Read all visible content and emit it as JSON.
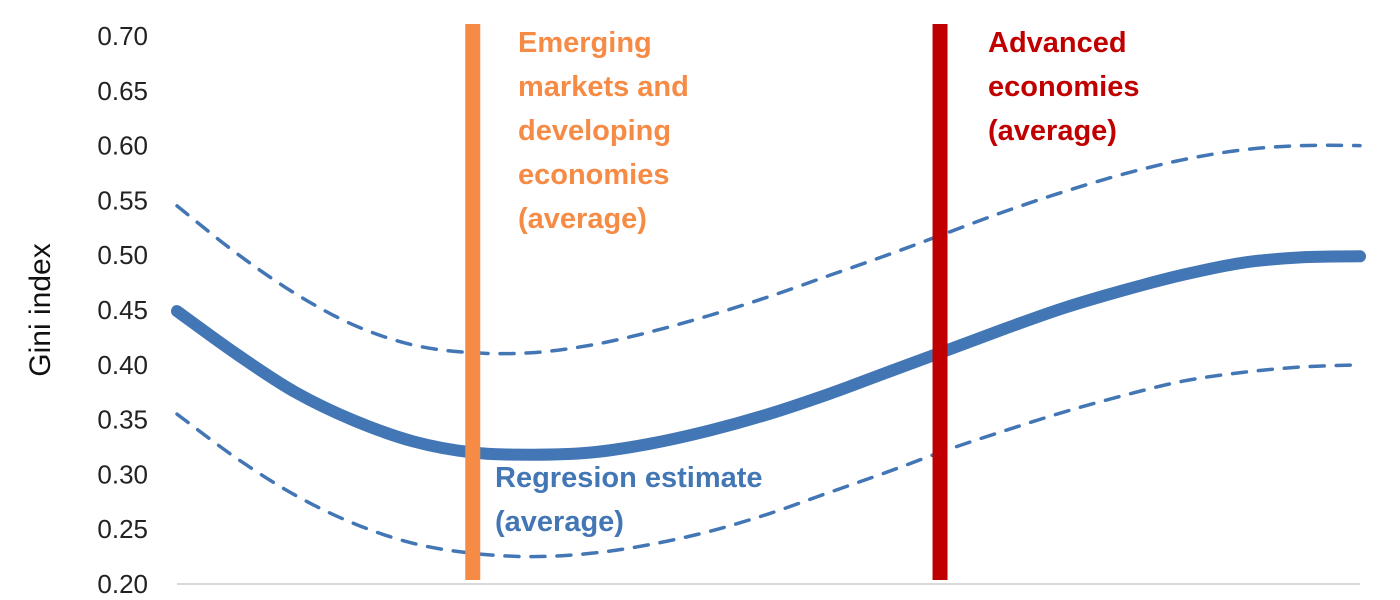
{
  "chart_data": {
    "type": "line",
    "ylabel": "Gini index",
    "xlabel": "",
    "ylim": [
      0.2,
      0.7
    ],
    "yticks": [
      "0.20",
      "0.25",
      "0.30",
      "0.35",
      "0.40",
      "0.45",
      "0.50",
      "0.55",
      "0.60",
      "0.65",
      "0.70"
    ],
    "xlim": [
      0,
      1
    ],
    "grid": false,
    "series": [
      {
        "name": "Regresion estimate (average)",
        "style": "solid",
        "color": "#4376B4",
        "x": [
          0.0,
          0.05,
          0.1,
          0.15,
          0.2,
          0.25,
          0.3,
          0.35,
          0.4,
          0.45,
          0.5,
          0.55,
          0.6,
          0.65,
          0.7,
          0.75,
          0.8,
          0.85,
          0.9,
          0.95,
          1.0
        ],
        "y": [
          0.449,
          0.41,
          0.375,
          0.349,
          0.33,
          0.32,
          0.318,
          0.32,
          0.328,
          0.34,
          0.355,
          0.373,
          0.393,
          0.413,
          0.433,
          0.452,
          0.468,
          0.482,
          0.493,
          0.498,
          0.499
        ]
      },
      {
        "style": "dashed",
        "color": "#4376B4",
        "x": [
          0.0,
          0.05,
          0.1,
          0.15,
          0.2,
          0.25,
          0.3,
          0.35,
          0.4,
          0.45,
          0.5,
          0.55,
          0.6,
          0.65,
          0.7,
          0.75,
          0.8,
          0.85,
          0.9,
          0.95,
          1.0
        ],
        "y": [
          0.545,
          0.502,
          0.465,
          0.436,
          0.418,
          0.411,
          0.411,
          0.418,
          0.43,
          0.445,
          0.462,
          0.481,
          0.5,
          0.52,
          0.54,
          0.558,
          0.574,
          0.587,
          0.596,
          0.6,
          0.6
        ]
      },
      {
        "style": "dashed",
        "color": "#4376B4",
        "x": [
          0.0,
          0.05,
          0.1,
          0.15,
          0.2,
          0.25,
          0.3,
          0.35,
          0.4,
          0.45,
          0.5,
          0.55,
          0.6,
          0.65,
          0.7,
          0.75,
          0.8,
          0.85,
          0.9,
          0.95,
          1.0
        ],
        "y": [
          0.355,
          0.315,
          0.281,
          0.255,
          0.237,
          0.228,
          0.225,
          0.228,
          0.236,
          0.248,
          0.264,
          0.283,
          0.302,
          0.322,
          0.34,
          0.357,
          0.372,
          0.385,
          0.393,
          0.398,
          0.4
        ]
      }
    ],
    "vlines": [
      {
        "name": "Emerging markets and developing economies (average)",
        "x": 0.25,
        "color": "#F58B45"
      },
      {
        "name": "Advanced economies (average)",
        "x": 0.645,
        "color": "#C00000"
      }
    ],
    "annotations": {
      "emde": {
        "lines": [
          "Emerging",
          "markets and",
          "developing",
          "economies",
          "(average)"
        ],
        "color": "#F58B45"
      },
      "advanced": {
        "lines": [
          "Advanced",
          "economies",
          "(average)"
        ],
        "color": "#C00000"
      },
      "regression": {
        "lines": [
          "Regresion estimate",
          "(average)"
        ],
        "color": "#4376B4"
      }
    },
    "axis_color": "#D9D9D9"
  }
}
